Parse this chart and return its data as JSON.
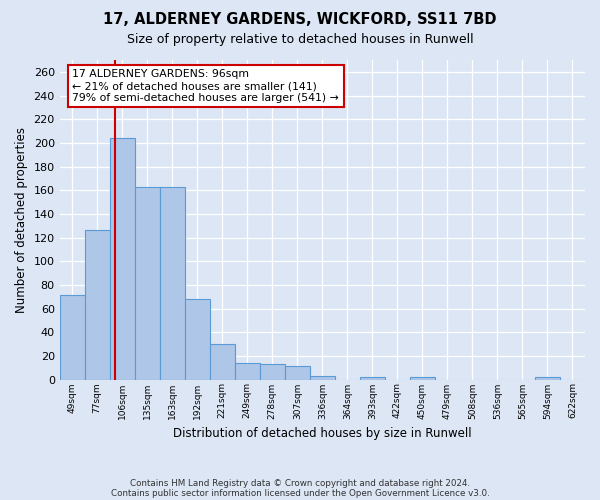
{
  "title": "17, ALDERNEY GARDENS, WICKFORD, SS11 7BD",
  "subtitle": "Size of property relative to detached houses in Runwell",
  "xlabel": "Distribution of detached houses by size in Runwell",
  "ylabel": "Number of detached properties",
  "bin_labels": [
    "49sqm",
    "77sqm",
    "106sqm",
    "135sqm",
    "163sqm",
    "192sqm",
    "221sqm",
    "249sqm",
    "278sqm",
    "307sqm",
    "336sqm",
    "364sqm",
    "393sqm",
    "422sqm",
    "450sqm",
    "479sqm",
    "508sqm",
    "536sqm",
    "565sqm",
    "594sqm",
    "622sqm"
  ],
  "bar_heights": [
    71,
    126,
    204,
    163,
    163,
    68,
    30,
    14,
    13,
    11,
    3,
    0,
    2,
    0,
    2,
    0,
    0,
    0,
    0,
    2,
    0
  ],
  "bar_color": "#aec6e8",
  "bar_edge_color": "#5b9bd5",
  "bg_color": "#dce6f5",
  "grid_color": "#ffffff",
  "vline_position": 1.72,
  "vline_color": "#cc0000",
  "annotation_text": "17 ALDERNEY GARDENS: 96sqm\n← 21% of detached houses are smaller (141)\n79% of semi-detached houses are larger (541) →",
  "annotation_box_color": "#ffffff",
  "annotation_box_edge": "#cc0000",
  "yticks": [
    0,
    20,
    40,
    60,
    80,
    100,
    120,
    140,
    160,
    180,
    200,
    220,
    240,
    260
  ],
  "ylim": [
    0,
    270
  ],
  "footer_line1": "Contains HM Land Registry data © Crown copyright and database right 2024.",
  "footer_line2": "Contains public sector information licensed under the Open Government Licence v3.0."
}
